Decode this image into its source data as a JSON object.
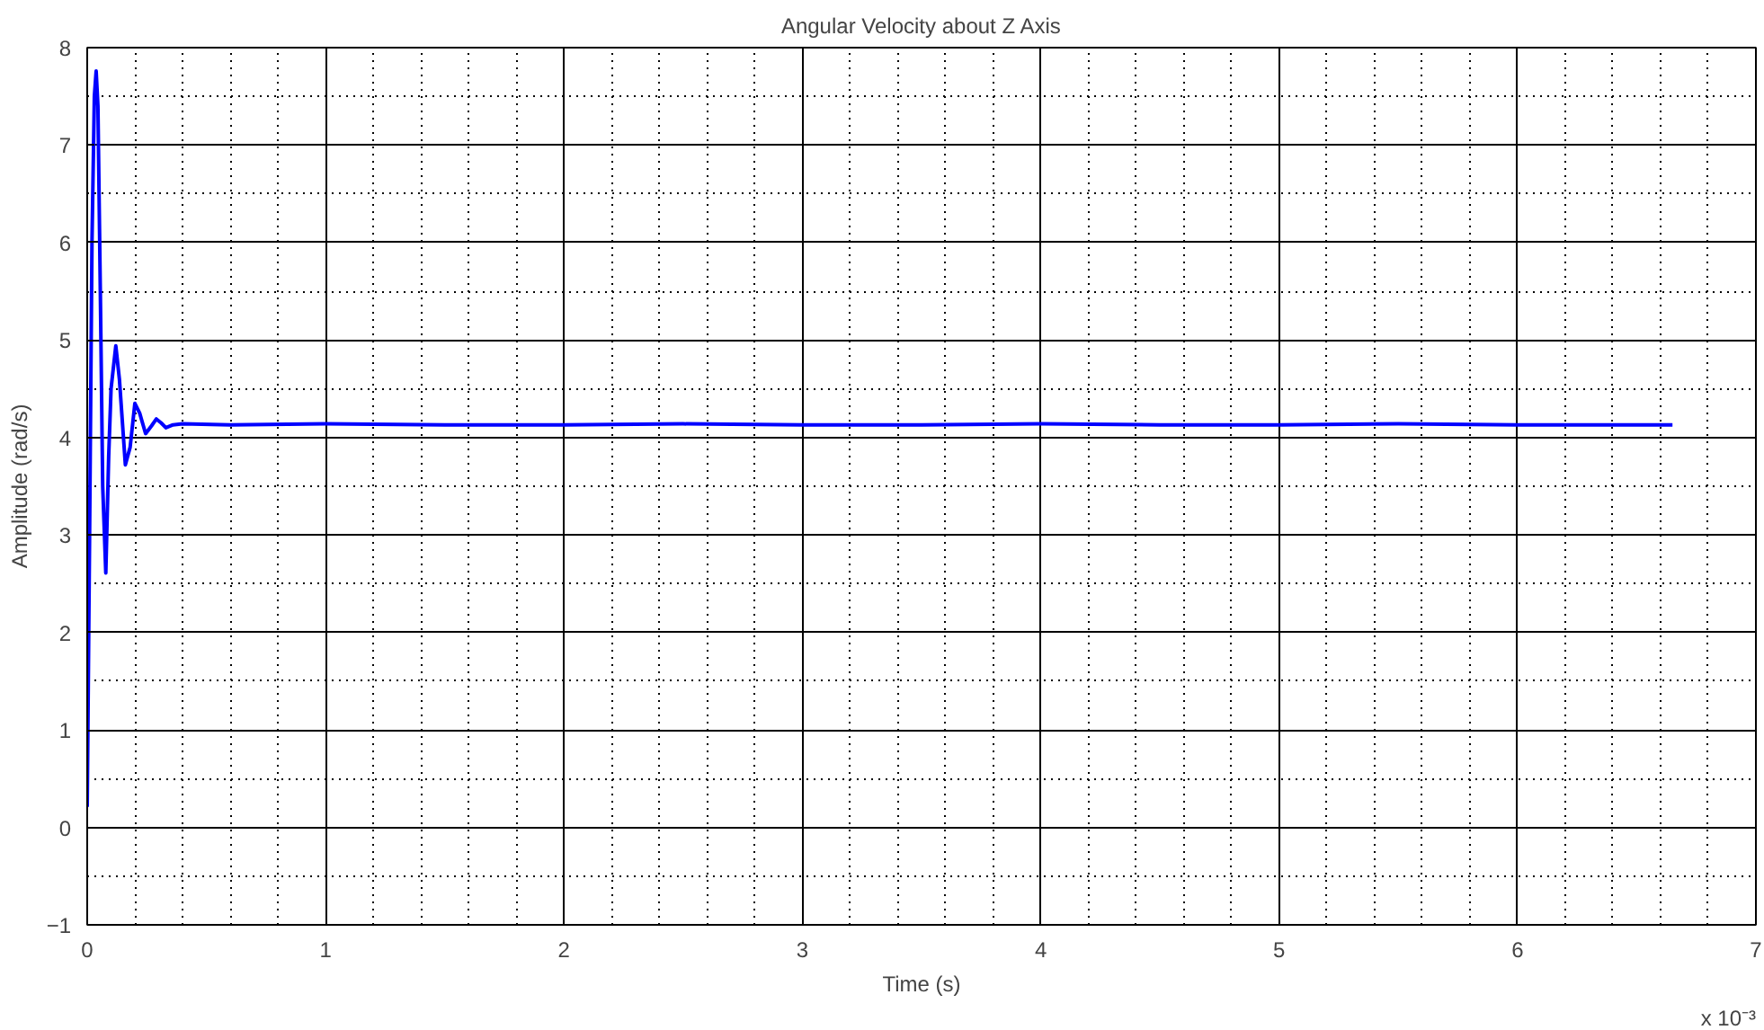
{
  "chart_data": {
    "type": "line",
    "title": "Angular Velocity about Z Axis",
    "xlabel": "Time (s)",
    "ylabel": "Amplitude (rad/s)",
    "annotations": [
      "x 10⁻³"
    ],
    "x": [
      0,
      0.01,
      0.02,
      0.03,
      0.0375,
      0.045,
      0.055,
      0.065,
      0.078,
      0.09,
      0.1,
      0.12,
      0.135,
      0.16,
      0.18,
      0.2,
      0.22,
      0.245,
      0.27,
      0.29,
      0.31,
      0.33,
      0.36,
      0.4,
      0.6,
      1,
      1.5,
      2,
      2.5,
      3,
      3.5,
      4,
      4.5,
      5,
      5.5,
      6,
      6.65
    ],
    "series": [
      {
        "color": "#0000ff",
        "values": [
          0.21,
          3.0,
          6.0,
          7.5,
          7.76,
          7.4,
          5.5,
          3.5,
          2.61,
          3.8,
          4.5,
          4.94,
          4.6,
          3.72,
          3.9,
          4.35,
          4.25,
          4.04,
          4.12,
          4.19,
          4.15,
          4.1,
          4.13,
          4.14,
          4.13,
          4.14,
          4.13,
          4.13,
          4.14,
          4.13,
          4.13,
          4.14,
          4.13,
          4.13,
          4.14,
          4.13,
          4.13
        ]
      }
    ],
    "xlim": [
      0,
      7
    ],
    "xticks": [
      0,
      1,
      2,
      3,
      4,
      5,
      6,
      7
    ],
    "ylim": [
      -1,
      8
    ],
    "yticks": [
      -1,
      0,
      1,
      2,
      3,
      4,
      5,
      6,
      7,
      8
    ],
    "grid": true
  }
}
